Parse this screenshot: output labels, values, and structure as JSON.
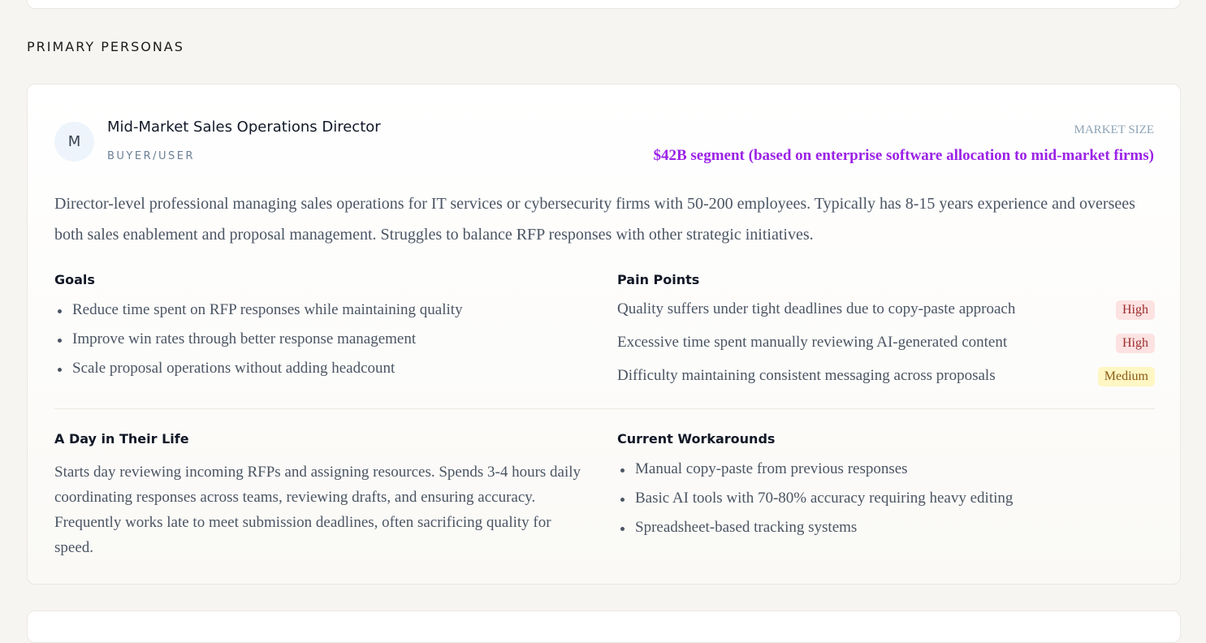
{
  "section_title": "PRIMARY PERSONAS",
  "persona": {
    "initial": "M",
    "name": "Mid-Market Sales Operations Director",
    "role": "BUYER/USER",
    "market_size_label": "MARKET SIZE",
    "market_size_value": "$42B segment (based on enterprise software allocation to mid-market firms)",
    "description": "Director-level professional managing sales operations for IT services or cybersecurity firms with 50-200 employees. Typically has 8-15 years experience and oversees both sales enablement and proposal management. Struggles to balance RFP responses with other strategic initiatives.",
    "goals_title": "Goals",
    "goals": [
      "Reduce time spent on RFP responses while maintaining quality",
      "Improve win rates through better response management",
      "Scale proposal operations without adding headcount"
    ],
    "pain_title": "Pain Points",
    "pain_points": [
      {
        "text": "Quality suffers under tight deadlines due to copy-paste approach",
        "severity": "High",
        "color": "#fde2e2",
        "text_color": "#9b2c2c"
      },
      {
        "text": "Excessive time spent manually reviewing AI-generated content",
        "severity": "High",
        "color": "#fde2e2",
        "text_color": "#9b2c2c"
      },
      {
        "text": "Difficulty maintaining consistent messaging across proposals",
        "severity": "Medium",
        "color": "#fef6c3",
        "text_color": "#8a5a14"
      }
    ],
    "day_title": "A Day in Their Life",
    "day": "Starts day reviewing incoming RFPs and assigning resources. Spends 3-4 hours daily coordinating responses across teams, reviewing drafts, and ensuring accuracy. Frequently works late to meet submission deadlines, often sacrificing quality for speed.",
    "workarounds_title": "Current Workarounds",
    "workarounds": [
      "Manual copy-paste from previous responses",
      "Basic AI tools with 70-80% accuracy requiring heavy editing",
      "Spreadsheet-based tracking systems"
    ]
  }
}
